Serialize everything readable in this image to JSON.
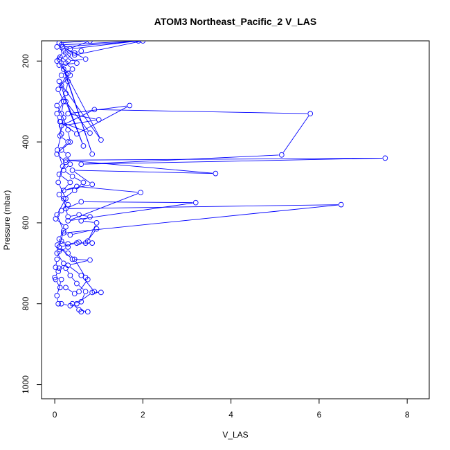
{
  "chart_data": {
    "type": "line",
    "title": "ATOM3 Northeast_Pacific_2 V_LAS",
    "xlabel": "V_LAS",
    "ylabel": "Pressure (mbar)",
    "xlim": [
      -0.3,
      8.5
    ],
    "ylim": [
      1035,
      150
    ],
    "y_reversed": true,
    "x_ticks": [
      0,
      2,
      4,
      6,
      8
    ],
    "x_tick_labels": [
      "0",
      "2",
      "4",
      "6",
      "8"
    ],
    "y_ticks": [
      200,
      400,
      600,
      800,
      1000
    ],
    "y_tick_labels": [
      "200",
      "400",
      "600",
      "800",
      "1000"
    ],
    "grid": false,
    "legend": "none",
    "series_color": "#0000ff",
    "marker": "open-circle",
    "series": [
      {
        "points": [
          [
            0.6,
            820
          ],
          [
            0.75,
            820
          ],
          [
            0.55,
            815
          ],
          [
            0.4,
            800
          ],
          [
            0.6,
            795
          ],
          [
            0.7,
            770
          ],
          [
            0.5,
            750
          ],
          [
            0.35,
            730
          ],
          [
            0.25,
            712
          ],
          [
            0.1,
            712
          ],
          [
            0.02,
            710
          ],
          [
            0.05,
            690
          ],
          [
            0.1,
            670
          ],
          [
            0.06,
            655
          ],
          [
            0.15,
            645
          ],
          [
            0.3,
            652
          ],
          [
            0.55,
            648
          ],
          [
            0.7,
            650
          ],
          [
            0.95,
            615
          ],
          [
            0.35,
            630
          ],
          [
            0.2,
            625
          ],
          [
            6.5,
            555
          ],
          [
            0.25,
            565
          ],
          [
            0.6,
            548
          ],
          [
            3.2,
            550
          ],
          [
            0.3,
            595
          ],
          [
            1.95,
            525
          ],
          [
            0.5,
            510
          ],
          [
            0.2,
            520
          ],
          [
            0.85,
            505
          ],
          [
            0.4,
            470
          ],
          [
            3.65,
            478
          ],
          [
            0.25,
            445
          ],
          [
            7.5,
            440
          ],
          [
            0.6,
            455
          ],
          [
            5.15,
            432
          ],
          [
            5.8,
            330
          ],
          [
            0.9,
            320
          ],
          [
            0.15,
            360
          ],
          [
            1.0,
            345
          ],
          [
            0.3,
            330
          ],
          [
            1.7,
            310
          ],
          [
            0.5,
            380
          ],
          [
            0.12,
            350
          ],
          [
            0.8,
            378
          ],
          [
            0.25,
            300
          ],
          [
            0.65,
            410
          ],
          [
            0.1,
            250
          ],
          [
            1.05,
            395
          ],
          [
            0.2,
            220
          ],
          [
            0.85,
            430
          ],
          [
            0.12,
            190
          ],
          [
            0.3,
            200
          ],
          [
            0.7,
            195
          ],
          [
            0.18,
            165
          ],
          [
            2.0,
            150
          ],
          [
            0.45,
            185
          ],
          [
            0.15,
            160
          ],
          [
            1.9,
            150
          ],
          [
            0.35,
            170
          ],
          [
            0.1,
            155
          ],
          [
            0.8,
            150
          ],
          [
            0.2,
            175
          ],
          [
            0.05,
            200
          ],
          [
            0.3,
            230
          ],
          [
            0.08,
            270
          ],
          [
            0.2,
            300
          ],
          [
            0.05,
            330
          ],
          [
            0.15,
            380
          ],
          [
            0.06,
            420
          ],
          [
            0.18,
            460
          ],
          [
            0.08,
            500
          ],
          [
            0.25,
            540
          ],
          [
            0.05,
            580
          ],
          [
            0.2,
            620
          ],
          [
            0.1,
            660
          ],
          [
            0.4,
            690
          ],
          [
            0.8,
            692
          ],
          [
            0.3,
            705
          ],
          [
            0.6,
            730
          ],
          [
            0.9,
            770
          ],
          [
            1.05,
            772
          ],
          [
            0.85,
            772
          ],
          [
            0.5,
            800
          ],
          [
            0.35,
            805
          ],
          [
            0.15,
            800
          ],
          [
            0.08,
            800
          ],
          [
            0.05,
            780
          ],
          [
            0.15,
            740
          ],
          [
            0.0,
            735
          ],
          [
            0.08,
            720
          ],
          [
            0.2,
            700
          ],
          [
            0.05,
            675
          ],
          [
            0.3,
            660
          ],
          [
            0.1,
            640
          ],
          [
            0.25,
            610
          ],
          [
            0.02,
            590
          ],
          [
            0.15,
            570
          ],
          [
            0.3,
            555
          ],
          [
            0.1,
            530
          ],
          [
            0.35,
            500
          ],
          [
            0.1,
            480
          ],
          [
            0.25,
            450
          ],
          [
            0.05,
            430
          ],
          [
            0.3,
            400
          ],
          [
            0.12,
            385
          ],
          [
            0.2,
            340
          ],
          [
            0.05,
            310
          ],
          [
            0.25,
            280
          ],
          [
            0.15,
            260
          ],
          [
            0.35,
            235
          ],
          [
            0.1,
            210
          ],
          [
            0.5,
            205
          ],
          [
            0.25,
            180
          ],
          [
            0.05,
            165
          ]
        ]
      },
      {
        "points": [
          [
            0.02,
            740
          ],
          [
            0.12,
            760
          ],
          [
            0.25,
            760
          ],
          [
            0.45,
            775
          ],
          [
            0.55,
            770
          ],
          [
            0.75,
            740
          ],
          [
            0.7,
            735
          ],
          [
            0.45,
            690
          ],
          [
            0.3,
            675
          ],
          [
            0.1,
            660
          ],
          [
            0.5,
            650
          ],
          [
            0.85,
            650
          ],
          [
            0.75,
            645
          ],
          [
            0.95,
            600
          ],
          [
            0.6,
            595
          ],
          [
            0.8,
            585
          ],
          [
            0.55,
            580
          ],
          [
            0.3,
            585
          ],
          [
            0.2,
            540
          ],
          [
            0.45,
            520
          ],
          [
            0.65,
            500
          ],
          [
            0.4,
            485
          ],
          [
            0.2,
            470
          ],
          [
            0.35,
            455
          ],
          [
            0.3,
            432
          ],
          [
            0.15,
            420
          ],
          [
            0.35,
            400
          ],
          [
            0.3,
            370
          ],
          [
            0.15,
            330
          ],
          [
            0.2,
            300
          ],
          [
            0.25,
            280
          ],
          [
            0.3,
            250
          ],
          [
            0.15,
            235
          ],
          [
            0.4,
            220
          ],
          [
            0.25,
            205
          ],
          [
            0.1,
            195
          ],
          [
            0.3,
            185
          ],
          [
            0.45,
            180
          ],
          [
            0.6,
            175
          ]
        ]
      }
    ]
  }
}
